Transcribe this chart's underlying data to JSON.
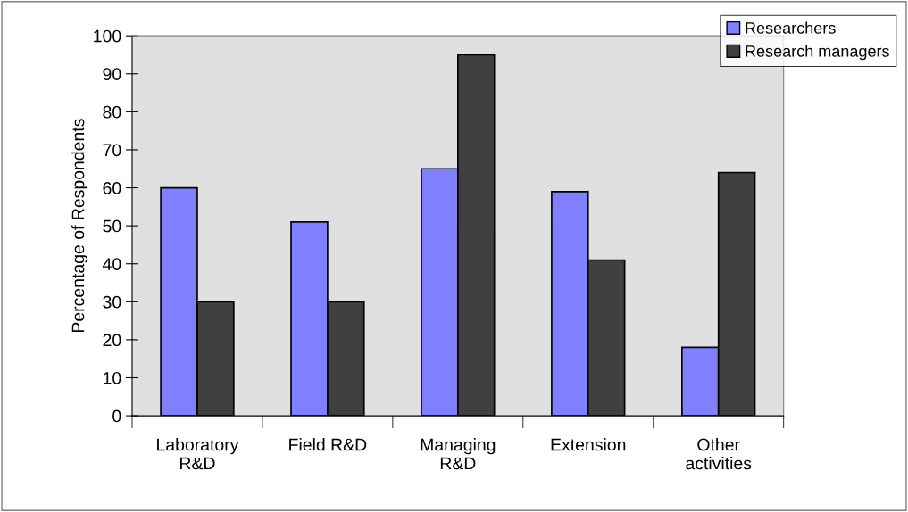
{
  "chart_data": {
    "type": "bar",
    "ylabel": "Percentage of Respondents",
    "categories": [
      "Laboratory\nR&D",
      "Field R&D",
      "Managing\nR&D",
      "Extension",
      "Other\nactivities"
    ],
    "series": [
      {
        "name": "Researchers",
        "color": "#8080ff",
        "values": [
          60,
          51,
          65,
          59,
          18
        ]
      },
      {
        "name": "Research managers",
        "color": "#404040",
        "values": [
          30,
          30,
          95,
          41,
          64
        ]
      }
    ],
    "ylim": [
      0,
      100
    ],
    "yticks": [
      0,
      10,
      20,
      30,
      40,
      50,
      60,
      70,
      80,
      90,
      100
    ],
    "grid": false,
    "legend": "top right"
  }
}
